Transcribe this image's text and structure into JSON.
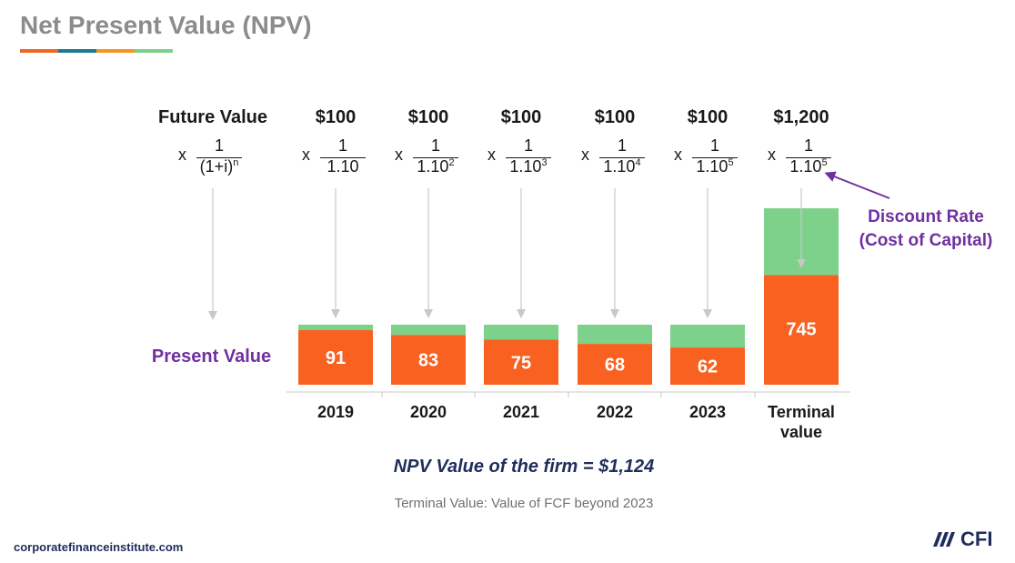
{
  "title": "Net Present Value (NPV)",
  "title_bar_colors": [
    "#f26522",
    "#1b7b92",
    "#f7941d",
    "#7dd08b"
  ],
  "labels": {
    "future_value": "Future Value",
    "present_value": "Present Value",
    "formula": {
      "x": "x",
      "num": "1",
      "den": "(1+i)",
      "den_exp": "n"
    }
  },
  "callout": {
    "line1": "Discount Rate",
    "line2": "(Cost of Capital)"
  },
  "npv_text": "NPV Value of the firm  =  $1,124",
  "footnote": "Terminal Value: Value of FCF beyond 2023",
  "site": "corporatefinanceinstitute.com",
  "logo": {
    "text": "CFI",
    "icon": "cfi-slashes-icon"
  },
  "colors": {
    "present": "#f86120",
    "discount": "#7dd18a",
    "arrow": "#c8c8c8",
    "callout": "#7030a0"
  },
  "chart_data": {
    "type": "bar",
    "categories": [
      "2019",
      "2020",
      "2021",
      "2022",
      "2023",
      "Terminal value"
    ],
    "future_values": [
      "$100",
      "$100",
      "$100",
      "$100",
      "$100",
      "$1,200"
    ],
    "denominators": [
      {
        "base": "1.10",
        "exp": ""
      },
      {
        "base": "1.10",
        "exp": "2"
      },
      {
        "base": "1.10",
        "exp": "3"
      },
      {
        "base": "1.10",
        "exp": "4"
      },
      {
        "base": "1.10",
        "exp": "5"
      },
      {
        "base": "1.10",
        "exp": "5"
      }
    ],
    "series": [
      {
        "name": "Present Value",
        "values": [
          91,
          83,
          75,
          68,
          62,
          745
        ]
      }
    ],
    "fv_numeric": [
      100,
      100,
      100,
      100,
      100,
      1200
    ]
  }
}
